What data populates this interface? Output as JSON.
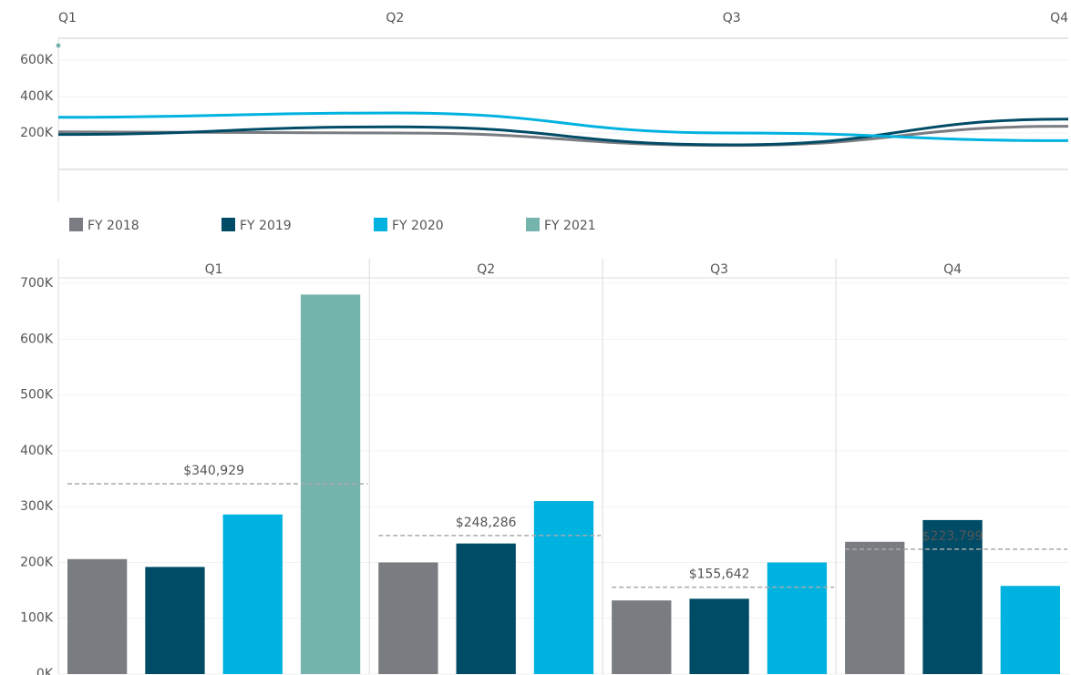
{
  "chart_data": [
    {
      "type": "line",
      "categories": [
        "Q1",
        "Q2",
        "Q3",
        "Q4"
      ],
      "series": [
        {
          "color": "#797c80",
          "values": [
            206000,
            200000,
            132000,
            237000
          ]
        },
        {
          "color": "#004c66",
          "values": [
            192000,
            234000,
            135000,
            276000
          ]
        },
        {
          "color": "#00b2e0",
          "values": [
            286000,
            310000,
            200000,
            158000
          ]
        },
        {
          "color": "#75b3ad",
          "values": [
            680000,
            null,
            null,
            null
          ]
        }
      ],
      "ylim": [
        -180000,
        720000
      ],
      "yticks": [
        {
          "value": 200000,
          "label": "200K"
        },
        {
          "value": 400000,
          "label": "400K"
        },
        {
          "value": 600000,
          "label": "600K"
        }
      ],
      "grid": true
    },
    {
      "type": "bar",
      "categories": [
        "Q1",
        "Q2",
        "Q3",
        "Q4"
      ],
      "series": [
        {
          "name": "FY 2018",
          "color": "#797c80",
          "values": [
            206000,
            200000,
            132000,
            237000
          ]
        },
        {
          "name": "FY 2019",
          "color": "#004c66",
          "values": [
            192000,
            234000,
            135000,
            276000
          ]
        },
        {
          "name": "FY 2020",
          "color": "#00b2e0",
          "values": [
            286000,
            310000,
            200000,
            158000
          ]
        },
        {
          "name": "FY 2021",
          "color": "#75b3ad",
          "values": [
            680000,
            null,
            null,
            null
          ]
        }
      ],
      "reference_lines": [
        {
          "value": 340929,
          "label": "$340,929"
        },
        {
          "value": 248286,
          "label": "$248,286"
        },
        {
          "value": 155642,
          "label": "$155,642"
        },
        {
          "value": 223799,
          "label": "$223,799"
        }
      ],
      "ylim": [
        0,
        710000
      ],
      "yticks": [
        {
          "value": 0,
          "label": "0K"
        },
        {
          "value": 100000,
          "label": "100K"
        },
        {
          "value": 200000,
          "label": "200K"
        },
        {
          "value": 300000,
          "label": "300K"
        },
        {
          "value": 400000,
          "label": "400K"
        },
        {
          "value": 500000,
          "label": "500K"
        },
        {
          "value": 600000,
          "label": "600K"
        },
        {
          "value": 700000,
          "label": "700K"
        }
      ],
      "grid": true,
      "legend": "top"
    }
  ]
}
